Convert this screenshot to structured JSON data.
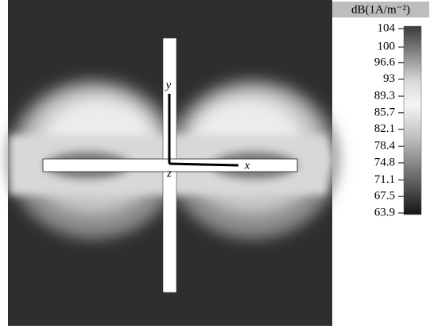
{
  "colorbar": {
    "title": "dB(1A/m⁻²)",
    "ticks": [
      104,
      100,
      96.6,
      93,
      89.3,
      85.7,
      82.1,
      78.4,
      74.8,
      71.1,
      67.5,
      63.9
    ]
  },
  "axes": {
    "x": "x",
    "y": "y",
    "z": "z"
  }
}
